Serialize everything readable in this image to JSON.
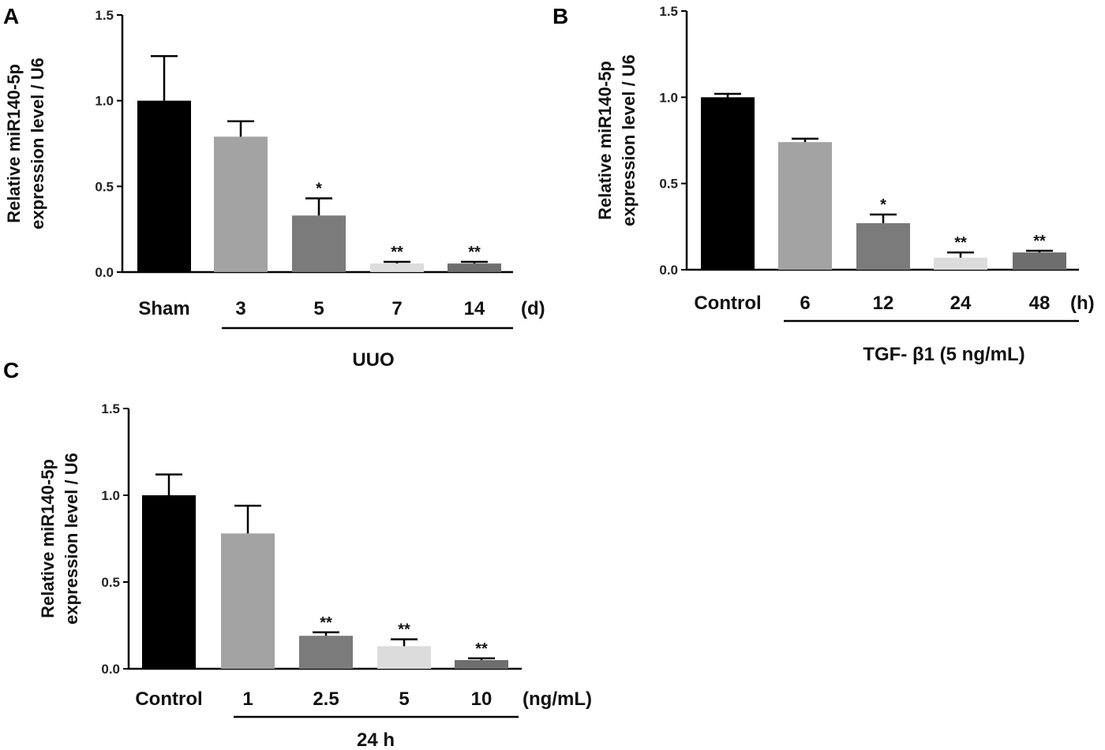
{
  "chart_data": [
    {
      "id": "A",
      "panel_label": "A",
      "type": "bar",
      "ylabel_lines": [
        "Relative miR140-5p",
        "expression level / U6"
      ],
      "ylim": [
        0,
        1.5
      ],
      "yticks": [
        "0.0",
        "0.5",
        "1.0",
        "1.5"
      ],
      "categories": [
        "Sham",
        "3",
        "5",
        "7",
        "14"
      ],
      "values": [
        1.0,
        0.79,
        0.33,
        0.05,
        0.05
      ],
      "errors": [
        0.26,
        0.09,
        0.1,
        0.01,
        0.01
      ],
      "significance": [
        "",
        "",
        "*",
        "**",
        "**"
      ],
      "colors": [
        "#000000",
        "#a3a3a3",
        "#7b7b7b",
        "#dcdcdc",
        "#6e6e6e"
      ],
      "unit": "(d)",
      "group_label": "UUO"
    },
    {
      "id": "B",
      "panel_label": "B",
      "type": "bar",
      "ylabel_lines": [
        "Relative miR140-5p",
        "expression level / U6"
      ],
      "ylim": [
        0,
        1.5
      ],
      "yticks": [
        "0.0",
        "0.5",
        "1.0",
        "1.5"
      ],
      "categories": [
        "Control",
        "6",
        "12",
        "24",
        "48"
      ],
      "values": [
        1.0,
        0.74,
        0.27,
        0.07,
        0.1
      ],
      "errors": [
        0.02,
        0.02,
        0.05,
        0.03,
        0.01
      ],
      "significance": [
        "",
        "",
        "*",
        "**",
        "**"
      ],
      "colors": [
        "#000000",
        "#a3a3a3",
        "#7b7b7b",
        "#dcdcdc",
        "#6e6e6e"
      ],
      "unit": "(h)",
      "group_label": "TGF- β1   (5 ng/mL)"
    },
    {
      "id": "C",
      "panel_label": "C",
      "type": "bar",
      "ylabel_lines": [
        "Relative miR140-5p",
        "expression level / U6"
      ],
      "ylim": [
        0,
        1.5
      ],
      "yticks": [
        "0.0",
        "0.5",
        "1.0",
        "1.5"
      ],
      "categories": [
        "Control",
        "1",
        "2.5",
        "5",
        "10"
      ],
      "values": [
        1.0,
        0.78,
        0.19,
        0.13,
        0.05
      ],
      "errors": [
        0.12,
        0.16,
        0.02,
        0.04,
        0.01
      ],
      "significance": [
        "",
        "",
        "**",
        "**",
        "**"
      ],
      "colors": [
        "#000000",
        "#a3a3a3",
        "#7b7b7b",
        "#dcdcdc",
        "#6e6e6e"
      ],
      "unit": "(ng/mL)",
      "group_label": "24 h"
    }
  ]
}
